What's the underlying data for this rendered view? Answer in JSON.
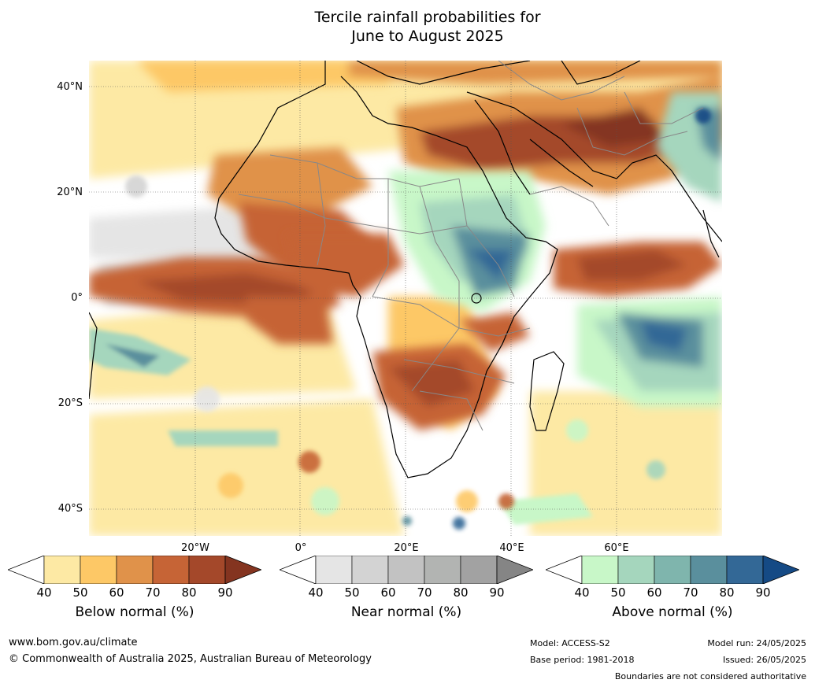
{
  "title": {
    "line1": "Tercile rainfall probabilities for",
    "line2": "June to August 2025"
  },
  "map": {
    "lat_labels": [
      "40°N",
      "20°N",
      "0°",
      "20°S",
      "40°S"
    ],
    "lon_labels": [
      "20°W",
      "0°",
      "20°E",
      "40°E",
      "60°E"
    ]
  },
  "colorbars": [
    {
      "title": "Below normal (%)",
      "ticks": [
        "40",
        "50",
        "60",
        "70",
        "80",
        "90"
      ],
      "colors": [
        "#ffffff",
        "#fde9a4",
        "#fdc866",
        "#e0924a",
        "#c66436",
        "#a4482a",
        "#843420"
      ]
    },
    {
      "title": "Near normal (%)",
      "ticks": [
        "40",
        "50",
        "60",
        "70",
        "80",
        "90"
      ],
      "colors": [
        "#ffffff",
        "#e5e5e5",
        "#d3d3d3",
        "#c2c2c2",
        "#b2b4b2",
        "#a2a2a2",
        "#858585"
      ]
    },
    {
      "title": "Above normal (%)",
      "ticks": [
        "40",
        "50",
        "60",
        "70",
        "80",
        "90"
      ],
      "colors": [
        "#ffffff",
        "#c8f7c8",
        "#a5d6bd",
        "#7fb5ad",
        "#5a8f9d",
        "#336896",
        "#154a85"
      ]
    }
  ],
  "footer": {
    "website": "www.bom.gov.au/climate",
    "copyright": "© Commonwealth of Australia 2025, Australian Bureau of Meteorology",
    "model": "Model: ACCESS-S2",
    "base_period": "Base period: 1981-2018",
    "model_run": "Model run: 24/05/2025",
    "issued": "Issued: 26/05/2025",
    "disclaimer": "Boundaries are not considered authoritative"
  }
}
